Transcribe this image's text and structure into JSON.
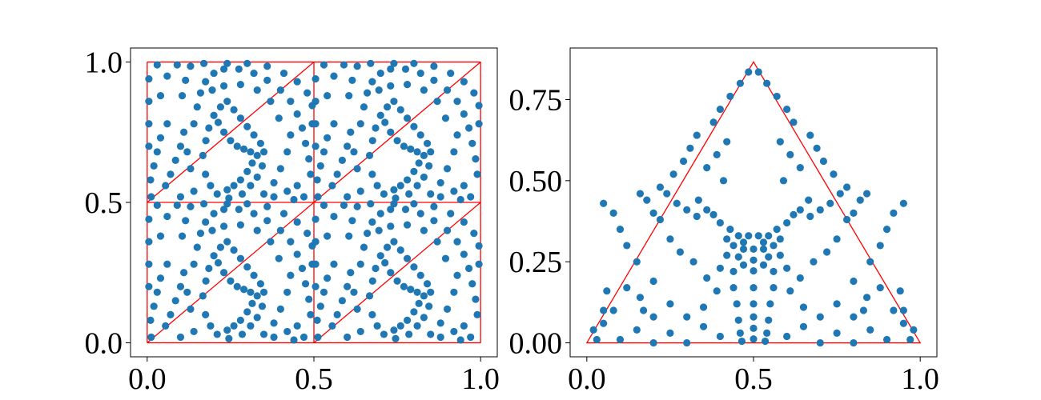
{
  "chart_data": [
    {
      "type": "scatter",
      "title": "",
      "xlabel": "",
      "ylabel": "",
      "xlim": [
        -0.05,
        1.05
      ],
      "ylim": [
        -0.05,
        1.05
      ],
      "grid": false,
      "legend": "none",
      "xticks": [
        0.0,
        0.5,
        1.0
      ],
      "xtick_labels": [
        "0.0",
        "0.5",
        "1.0"
      ],
      "yticks": [
        0.0,
        0.5,
        1.0
      ],
      "ytick_labels": [
        "0.0",
        "0.5",
        "1.0"
      ],
      "marker_color": "#1f77b4",
      "line_color": "#ff0000",
      "mesh": {
        "description_of_cells": "unit square split into 2x2 sub-squares, each split by a diagonal",
        "segments": [
          [
            [
              0,
              0
            ],
            [
              1,
              0
            ]
          ],
          [
            [
              1,
              0
            ],
            [
              1,
              1
            ]
          ],
          [
            [
              1,
              1
            ],
            [
              0,
              1
            ]
          ],
          [
            [
              0,
              1
            ],
            [
              0,
              0
            ]
          ],
          [
            [
              0.5,
              0
            ],
            [
              0.5,
              1
            ]
          ],
          [
            [
              0,
              0.5
            ],
            [
              1,
              0.5
            ]
          ],
          [
            [
              0,
              0
            ],
            [
              0.5,
              0.5
            ]
          ],
          [
            [
              0.5,
              0
            ],
            [
              1,
              0.5
            ]
          ],
          [
            [
              0,
              0.5
            ],
            [
              0.5,
              1
            ]
          ],
          [
            [
              0.5,
              0.5
            ],
            [
              1,
              1
            ]
          ]
        ]
      },
      "points_per_cell": [
        [
          0.167,
          0.667
        ],
        [
          0.176,
          0.72
        ],
        [
          0.185,
          0.765
        ],
        [
          0.2,
          0.81
        ],
        [
          0.22,
          0.84
        ],
        [
          0.24,
          0.86
        ],
        [
          0.213,
          0.785
        ],
        [
          0.23,
          0.75
        ],
        [
          0.25,
          0.72
        ],
        [
          0.27,
          0.7
        ],
        [
          0.29,
          0.69
        ],
        [
          0.31,
          0.68
        ],
        [
          0.33,
          0.667
        ],
        [
          0.315,
          0.64
        ],
        [
          0.3,
          0.61
        ],
        [
          0.28,
          0.58
        ],
        [
          0.26,
          0.56
        ],
        [
          0.24,
          0.545
        ],
        [
          0.21,
          0.53
        ],
        [
          0.19,
          0.56
        ],
        [
          0.175,
          0.6
        ],
        [
          0.26,
          0.83
        ],
        [
          0.28,
          0.8
        ],
        [
          0.3,
          0.77
        ],
        [
          0.32,
          0.74
        ],
        [
          0.34,
          0.71
        ],
        [
          0.35,
          0.68
        ],
        [
          0.345,
          0.63
        ],
        [
          0.33,
          0.59
        ],
        [
          0.31,
          0.56
        ],
        [
          0.285,
          0.53
        ],
        [
          0.245,
          0.515
        ],
        [
          0.14,
          0.78
        ],
        [
          0.15,
          0.84
        ],
        [
          0.16,
          0.89
        ],
        [
          0.175,
          0.93
        ],
        [
          0.2,
          0.96
        ],
        [
          0.23,
          0.975
        ],
        [
          0.275,
          0.975
        ],
        [
          0.32,
          0.96
        ],
        [
          0.36,
          0.935
        ],
        [
          0.4,
          0.9
        ],
        [
          0.43,
          0.86
        ],
        [
          0.45,
          0.815
        ],
        [
          0.465,
          0.765
        ],
        [
          0.475,
          0.71
        ],
        [
          0.485,
          0.655
        ],
        [
          0.49,
          0.6
        ],
        [
          0.105,
          0.88
        ],
        [
          0.115,
          0.935
        ],
        [
          0.13,
          0.985
        ],
        [
          0.17,
          0.995
        ],
        [
          0.24,
          0.995
        ],
        [
          0.3,
          0.995
        ],
        [
          0.36,
          0.985
        ],
        [
          0.41,
          0.96
        ],
        [
          0.45,
          0.93
        ],
        [
          0.48,
          0.89
        ],
        [
          0.495,
          0.845
        ],
        [
          0.495,
          0.78
        ],
        [
          0.055,
          0.56
        ],
        [
          0.07,
          0.6
        ],
        [
          0.085,
          0.65
        ],
        [
          0.1,
          0.7
        ],
        [
          0.11,
          0.75
        ],
        [
          0.06,
          0.78
        ],
        [
          0.04,
          0.73
        ],
        [
          0.03,
          0.68
        ],
        [
          0.02,
          0.63
        ],
        [
          0.01,
          0.58
        ],
        [
          0.012,
          0.52
        ],
        [
          0.005,
          0.7
        ],
        [
          0.005,
          0.78
        ],
        [
          0.005,
          0.86
        ],
        [
          0.005,
          0.94
        ],
        [
          0.04,
          0.88
        ],
        [
          0.06,
          0.95
        ],
        [
          0.03,
          0.99
        ],
        [
          0.09,
          0.99
        ],
        [
          0.35,
          0.53
        ],
        [
          0.38,
          0.57
        ],
        [
          0.4,
          0.62
        ],
        [
          0.42,
          0.68
        ],
        [
          0.43,
          0.74
        ],
        [
          0.38,
          0.52
        ],
        [
          0.42,
          0.54
        ],
        [
          0.45,
          0.56
        ],
        [
          0.47,
          0.52
        ],
        [
          0.44,
          0.51
        ],
        [
          0.1,
          0.52
        ],
        [
          0.14,
          0.54
        ],
        [
          0.13,
          0.62
        ],
        [
          0.12,
          0.68
        ],
        [
          0.395,
          0.8
        ],
        [
          0.37,
          0.86
        ],
        [
          0.33,
          0.9
        ],
        [
          0.28,
          0.92
        ],
        [
          0.23,
          0.915
        ],
        [
          0.195,
          0.9
        ]
      ]
    },
    {
      "type": "scatter",
      "title": "",
      "xlabel": "",
      "ylabel": "",
      "xlim": [
        -0.05,
        1.05
      ],
      "ylim": [
        -0.043,
        0.909
      ],
      "grid": false,
      "legend": "none",
      "xticks": [
        0.0,
        0.5,
        1.0
      ],
      "xtick_labels": [
        "0.0",
        "0.5",
        "1.0"
      ],
      "yticks": [
        0.0,
        0.25,
        0.5,
        0.75
      ],
      "ytick_labels": [
        "0.00",
        "0.25",
        "0.50",
        "0.75"
      ],
      "marker_color": "#1f77b4",
      "line_color": "#ff0000",
      "triangle": [
        [
          0,
          0
        ],
        [
          1,
          0
        ],
        [
          0.5,
          0.866
        ]
      ],
      "points": [
        [
          0.5,
          0.289
        ],
        [
          0.5,
          0.255
        ],
        [
          0.5,
          0.222
        ],
        [
          0.5,
          0.17
        ],
        [
          0.5,
          0.12
        ],
        [
          0.5,
          0.08
        ],
        [
          0.5,
          0.045
        ],
        [
          0.5,
          0.012
        ],
        [
          0.47,
          0.289
        ],
        [
          0.53,
          0.289
        ],
        [
          0.47,
          0.31
        ],
        [
          0.53,
          0.31
        ],
        [
          0.485,
          0.33
        ],
        [
          0.515,
          0.33
        ],
        [
          0.455,
          0.265
        ],
        [
          0.545,
          0.265
        ],
        [
          0.47,
          0.24
        ],
        [
          0.53,
          0.24
        ],
        [
          0.44,
          0.3
        ],
        [
          0.56,
          0.3
        ],
        [
          0.455,
          0.33
        ],
        [
          0.545,
          0.33
        ],
        [
          0.42,
          0.32
        ],
        [
          0.58,
          0.32
        ],
        [
          0.43,
          0.35
        ],
        [
          0.57,
          0.35
        ],
        [
          0.4,
          0.37
        ],
        [
          0.6,
          0.37
        ],
        [
          0.38,
          0.395
        ],
        [
          0.62,
          0.395
        ],
        [
          0.36,
          0.41
        ],
        [
          0.64,
          0.41
        ],
        [
          0.335,
          0.44
        ],
        [
          0.665,
          0.44
        ],
        [
          0.42,
          0.27
        ],
        [
          0.58,
          0.27
        ],
        [
          0.4,
          0.23
        ],
        [
          0.6,
          0.23
        ],
        [
          0.44,
          0.22
        ],
        [
          0.56,
          0.22
        ],
        [
          0.44,
          0.17
        ],
        [
          0.56,
          0.17
        ],
        [
          0.45,
          0.12
        ],
        [
          0.55,
          0.12
        ],
        [
          0.455,
          0.07
        ],
        [
          0.545,
          0.07
        ],
        [
          0.46,
          0.03
        ],
        [
          0.54,
          0.03
        ],
        [
          0.465,
          0.005
        ],
        [
          0.535,
          0.005
        ],
        [
          0.39,
          0.16
        ],
        [
          0.61,
          0.16
        ],
        [
          0.36,
          0.2
        ],
        [
          0.64,
          0.2
        ],
        [
          0.32,
          0.25
        ],
        [
          0.68,
          0.25
        ],
        [
          0.28,
          0.28
        ],
        [
          0.72,
          0.28
        ],
        [
          0.25,
          0.32
        ],
        [
          0.75,
          0.32
        ],
        [
          0.22,
          0.38
        ],
        [
          0.78,
          0.38
        ],
        [
          0.2,
          0.4
        ],
        [
          0.8,
          0.4
        ],
        [
          0.18,
          0.44
        ],
        [
          0.82,
          0.44
        ],
        [
          0.16,
          0.46
        ],
        [
          0.84,
          0.46
        ],
        [
          0.33,
          0.39
        ],
        [
          0.67,
          0.39
        ],
        [
          0.3,
          0.41
        ],
        [
          0.7,
          0.41
        ],
        [
          0.27,
          0.43
        ],
        [
          0.73,
          0.43
        ],
        [
          0.24,
          0.46
        ],
        [
          0.76,
          0.46
        ],
        [
          0.22,
          0.48
        ],
        [
          0.78,
          0.48
        ],
        [
          0.26,
          0.52
        ],
        [
          0.74,
          0.52
        ],
        [
          0.29,
          0.56
        ],
        [
          0.71,
          0.56
        ],
        [
          0.31,
          0.6
        ],
        [
          0.69,
          0.6
        ],
        [
          0.33,
          0.64
        ],
        [
          0.67,
          0.64
        ],
        [
          0.38,
          0.68
        ],
        [
          0.62,
          0.68
        ],
        [
          0.4,
          0.72
        ],
        [
          0.6,
          0.72
        ],
        [
          0.43,
          0.76
        ],
        [
          0.57,
          0.76
        ],
        [
          0.46,
          0.8
        ],
        [
          0.54,
          0.8
        ],
        [
          0.485,
          0.835
        ],
        [
          0.515,
          0.835
        ],
        [
          0.36,
          0.54
        ],
        [
          0.64,
          0.54
        ],
        [
          0.39,
          0.58
        ],
        [
          0.61,
          0.58
        ],
        [
          0.42,
          0.62
        ],
        [
          0.58,
          0.62
        ],
        [
          0.41,
          0.5
        ],
        [
          0.59,
          0.5
        ],
        [
          0.2,
          0.19
        ],
        [
          0.8,
          0.19
        ],
        [
          0.15,
          0.25
        ],
        [
          0.85,
          0.25
        ],
        [
          0.12,
          0.3
        ],
        [
          0.88,
          0.3
        ],
        [
          0.1,
          0.35
        ],
        [
          0.9,
          0.35
        ],
        [
          0.08,
          0.4
        ],
        [
          0.92,
          0.4
        ],
        [
          0.05,
          0.43
        ],
        [
          0.95,
          0.43
        ],
        [
          0.25,
          0.12
        ],
        [
          0.75,
          0.12
        ],
        [
          0.3,
          0.08
        ],
        [
          0.7,
          0.08
        ],
        [
          0.35,
          0.05
        ],
        [
          0.65,
          0.05
        ],
        [
          0.4,
          0.02
        ],
        [
          0.6,
          0.02
        ],
        [
          0.1,
          0.01
        ],
        [
          0.9,
          0.01
        ],
        [
          0.15,
          0.04
        ],
        [
          0.85,
          0.04
        ],
        [
          0.2,
          0.08
        ],
        [
          0.8,
          0.08
        ],
        [
          0.25,
          0.03
        ],
        [
          0.75,
          0.03
        ],
        [
          0.05,
          0.06
        ],
        [
          0.95,
          0.06
        ],
        [
          0.03,
          0.01
        ],
        [
          0.97,
          0.01
        ],
        [
          0.08,
          0.1
        ],
        [
          0.92,
          0.1
        ],
        [
          0.12,
          0.17
        ],
        [
          0.88,
          0.17
        ],
        [
          0.05,
          0.1
        ],
        [
          0.95,
          0.1
        ],
        [
          0.02,
          0.04
        ],
        [
          0.98,
          0.04
        ],
        [
          0.17,
          0.1
        ],
        [
          0.83,
          0.1
        ],
        [
          0.3,
          0.0
        ],
        [
          0.7,
          0.0
        ],
        [
          0.2,
          0.0
        ],
        [
          0.8,
          0.0
        ],
        [
          0.35,
          0.11
        ],
        [
          0.65,
          0.11
        ],
        [
          0.16,
          0.14
        ],
        [
          0.84,
          0.14
        ],
        [
          0.06,
          0.16
        ],
        [
          0.94,
          0.16
        ]
      ]
    }
  ]
}
